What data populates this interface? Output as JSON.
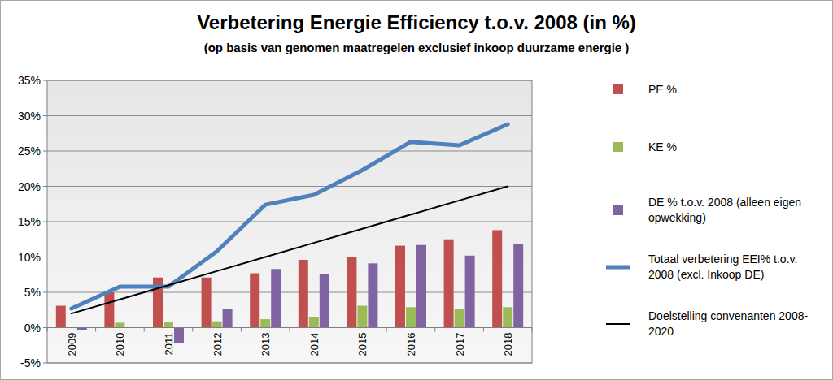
{
  "chart_data": {
    "type": "bar",
    "title": "Verbetering Energie Efficiency t.o.v. 2008 (in %)",
    "subtitle": "(op basis van genomen maatregelen exclusief inkoop duurzame energie )",
    "categories": [
      "2009",
      "2010",
      "2011",
      "2012",
      "2013",
      "2014",
      "2015",
      "2016",
      "2017",
      "2018"
    ],
    "series": [
      {
        "name": "PE %",
        "type": "bar",
        "color": "#c0504d",
        "values": [
          3.1,
          5.0,
          7.1,
          7.1,
          7.7,
          9.6,
          10.0,
          11.6,
          12.5,
          13.8
        ]
      },
      {
        "name": "KE %",
        "type": "bar",
        "color": "#9bbb59",
        "values": [
          0,
          0.7,
          0.8,
          0.9,
          1.2,
          1.5,
          3.1,
          2.9,
          2.7,
          2.9
        ]
      },
      {
        "name": "DE % t.o.v. 2008 (alleen eigen opwekking)",
        "type": "bar",
        "color": "#8064a2",
        "values": [
          -0.3,
          0,
          -2.2,
          2.6,
          8.3,
          7.6,
          9.1,
          11.7,
          10.2,
          11.9
        ]
      },
      {
        "name": "Totaal verbetering EEI% t.o.v. 2008 (excl. Inkoop DE)",
        "type": "line",
        "color": "#4f81bd",
        "values": [
          2.7,
          5.8,
          5.8,
          10.8,
          17.4,
          18.8,
          22.3,
          26.3,
          25.8,
          28.8
        ]
      },
      {
        "name": "Doelstelling convenanten 2008-2020",
        "type": "line",
        "color": "#000000",
        "values": [
          2,
          4,
          6,
          8,
          10,
          12,
          14,
          16,
          18,
          20
        ]
      }
    ],
    "ylim": [
      -5,
      35
    ],
    "yticks": [
      {
        "value": -5,
        "label": "-5%"
      },
      {
        "value": 0,
        "label": "0%"
      },
      {
        "value": 5,
        "label": "5%"
      },
      {
        "value": 10,
        "label": "10%"
      },
      {
        "value": 15,
        "label": "15%"
      },
      {
        "value": 20,
        "label": "20%"
      },
      {
        "value": 25,
        "label": "25%"
      },
      {
        "value": 30,
        "label": "30%"
      },
      {
        "value": 35,
        "label": "35%"
      }
    ],
    "grid": true,
    "legend": "right"
  }
}
